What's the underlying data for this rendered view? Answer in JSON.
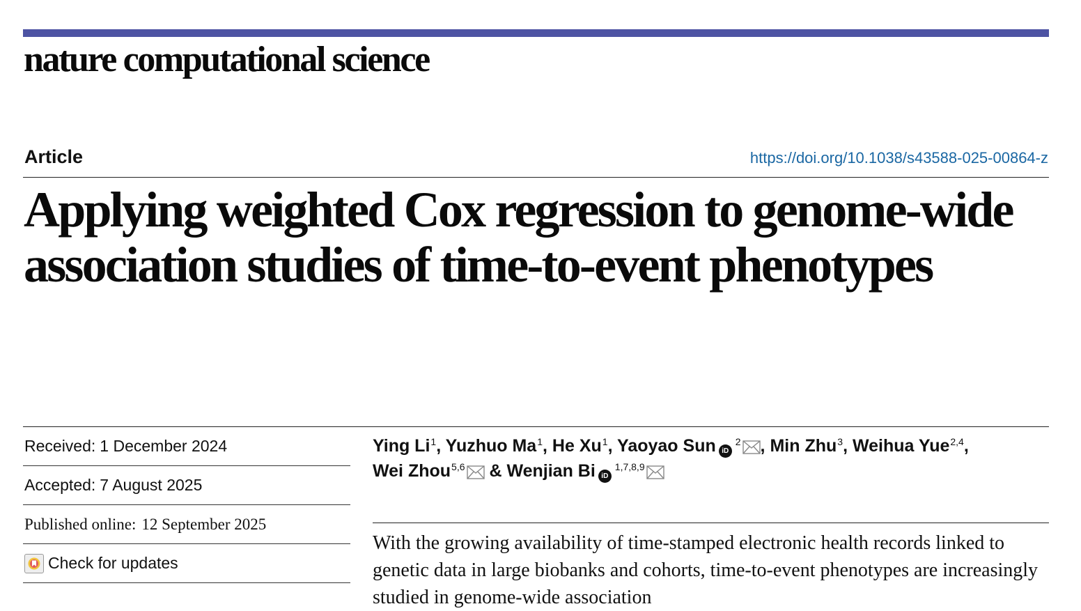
{
  "header": {
    "journal": "nature computational science",
    "accent_color": "#4d53a3"
  },
  "article": {
    "type": "Article",
    "doi": "https://doi.org/10.1038/s43588-025-00864-z",
    "doi_color": "#1a67a3",
    "title": "Applying weighted Cox regression to genome-wide association studies of time-to-event phenotypes"
  },
  "dates": {
    "received_label": "Received:",
    "received": "1 December 2024",
    "accepted_label": "Accepted:",
    "accepted": "7 August 2025",
    "published_label": "Published online:",
    "published": "12 September 2025"
  },
  "updates": {
    "label": "Check for updates",
    "icon": "check-updates-icon"
  },
  "authors": [
    {
      "name": "Ying Li",
      "aff": "1",
      "orcid": false,
      "email": false
    },
    {
      "name": "Yuzhuo Ma",
      "aff": "1",
      "orcid": false,
      "email": false
    },
    {
      "name": "He Xu",
      "aff": "1",
      "orcid": false,
      "email": false
    },
    {
      "name": "Yaoyao Sun",
      "aff": "2",
      "orcid": true,
      "email": true
    },
    {
      "name": "Min Zhu",
      "aff": "3",
      "orcid": false,
      "email": false
    },
    {
      "name": "Weihua Yue",
      "aff": "2,4",
      "orcid": false,
      "email": false
    },
    {
      "name": "Wei Zhou",
      "aff": "5,6",
      "orcid": false,
      "email": true
    },
    {
      "name": "Wenjian Bi",
      "aff": "1,7,8,9",
      "orcid": true,
      "email": true
    }
  ],
  "abstract": {
    "text": "With the growing availability of time-stamped electronic health records linked to genetic data in large biobanks and cohorts, time-to-event phenotypes are increasingly studied in genome-wide association"
  }
}
